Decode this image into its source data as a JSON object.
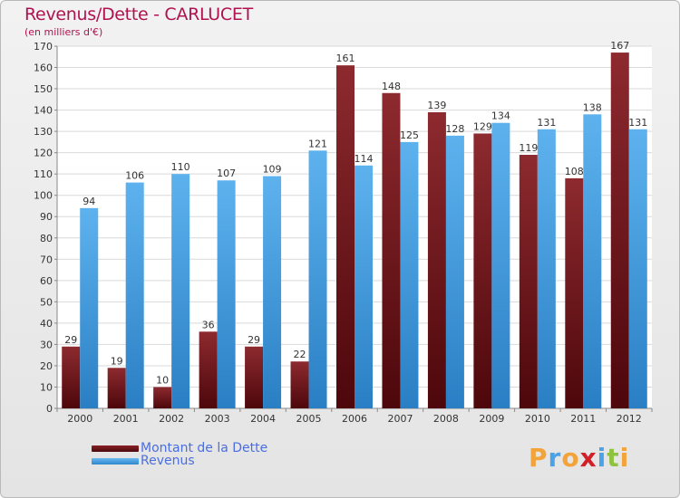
{
  "chart_data": {
    "type": "bar",
    "title": "Revenus/Dette - CARLUCET",
    "subtitle": "(en milliers d'€)",
    "categories": [
      "2000",
      "2001",
      "2002",
      "2003",
      "2004",
      "2005",
      "2006",
      "2007",
      "2008",
      "2009",
      "2010",
      "2011",
      "2012"
    ],
    "series": [
      {
        "name": "Montant de la Dette",
        "color": "#7a1a1f",
        "values": [
          29,
          19,
          10,
          36,
          29,
          22,
          161,
          148,
          139,
          129,
          119,
          108,
          167
        ]
      },
      {
        "name": "Revenus",
        "color": "#4aa3e6",
        "values": [
          94,
          106,
          110,
          107,
          109,
          121,
          114,
          125,
          128,
          134,
          131,
          138,
          131
        ]
      }
    ],
    "ylim": [
      0,
      170
    ],
    "yticks": [
      0,
      10,
      20,
      30,
      40,
      50,
      60,
      70,
      80,
      90,
      100,
      110,
      120,
      130,
      140,
      150,
      160,
      170
    ],
    "grid": true,
    "legend": "bottom-left"
  },
  "branding": {
    "logo_letters": [
      "P",
      "r",
      "o",
      "x",
      "i",
      "t",
      "i"
    ],
    "logo_colors": [
      "#f2a33a",
      "#4aa3e6",
      "#f2a33a",
      "#d21f2a",
      "#4aa3e6",
      "#8fc23f",
      "#f2a33a"
    ]
  }
}
